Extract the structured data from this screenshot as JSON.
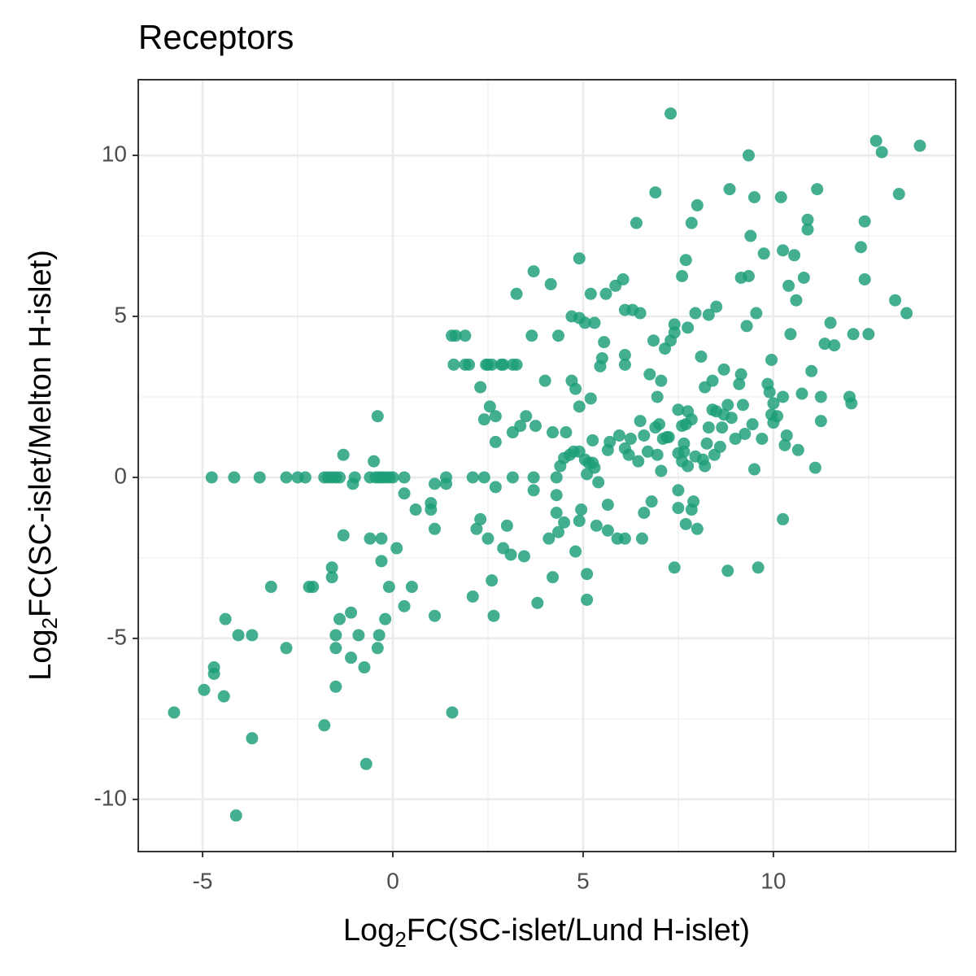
{
  "chart_data": {
    "type": "scatter",
    "title": "Receptors",
    "x_label": [
      "Log",
      "2",
      "FC(SC-islet/Lund H-islet)"
    ],
    "y_label": [
      "Log",
      "2",
      "FC(SC-islet/Melton H-islet)"
    ],
    "color": "#1b9e77",
    "opacity": 0.82,
    "grid": true,
    "minor_grid": true,
    "xlim": [
      -6.69,
      14.79
    ],
    "ylim": [
      -11.62,
      12.35
    ],
    "xticks": [
      -5,
      0,
      5,
      10
    ],
    "yticks": [
      -10,
      -5,
      0,
      5,
      10
    ],
    "x": [
      -5.75,
      -4.96,
      -4.7,
      -4.7,
      -4.44,
      -4.4,
      -4.76,
      -4.17,
      -4.12,
      -4.06,
      -3.7,
      -3.7,
      -3.5,
      -3.2,
      -2.8,
      -2.8,
      -2.5,
      -2.3,
      -2.2,
      -2.1,
      -1.8,
      -1.8,
      -1.7,
      -1.6,
      -1.5,
      -1.4,
      -1.6,
      -1.6,
      -1.5,
      -1.5,
      -1.5,
      -1.4,
      -1.3,
      -1.3,
      -1.1,
      -1.1,
      -1.05,
      -1.0,
      -0.9,
      -0.75,
      -0.7,
      -0.6,
      -0.6,
      -0.45,
      -0.36,
      -0.28,
      -0.19,
      -0.09,
      0,
      -0.5,
      -0.4,
      -0.36,
      -0.4,
      -0.3,
      -0.3,
      -0.2,
      -0.1,
      0.1,
      0.3,
      0.3,
      0.3,
      0.5,
      0.6,
      1.0,
      1.0,
      1.1,
      1.1,
      1.1,
      1.4,
      1.4,
      1.55,
      1.65,
      1.9,
      1.6,
      1.9,
      2.0,
      1.56,
      2.1,
      2.1,
      2.2,
      2.3,
      2.3,
      2.4,
      2.4,
      2.45,
      2.5,
      2.6,
      2.5,
      2.55,
      2.6,
      2.65,
      2.7,
      2.7,
      2.7,
      2.85,
      2.9,
      3.15,
      3.25,
      2.9,
      3.0,
      3.1,
      3.15,
      3.15,
      3.25,
      3.35,
      3.45,
      3.5,
      3.65,
      3.7,
      3.7,
      3.7,
      3.75,
      3.8,
      4.0,
      4.1,
      4.15,
      4.2,
      4.2,
      4.3,
      4.3,
      4.3,
      4.35,
      4.35,
      4.4,
      4.5,
      4.5,
      4.55,
      4.65,
      4.7,
      4.7,
      4.75,
      4.8,
      4.8,
      4.9,
      4.9,
      4.9,
      4.9,
      4.9,
      4.95,
      5.05,
      5.05,
      5.1,
      5.1,
      5.1,
      5.15,
      5.2,
      5.2,
      5.25,
      5.25,
      5.3,
      5.3,
      5.35,
      5.4,
      5.45,
      5.5,
      5.55,
      5.6,
      5.65,
      5.65,
      5.65,
      5.7,
      5.85,
      5.9,
      5.95,
      6.05,
      6.1,
      6.1,
      6.1,
      6.1,
      6.1,
      6.2,
      6.25,
      6.3,
      6.4,
      6.45,
      6.5,
      6.5,
      6.55,
      6.6,
      6.6,
      6.7,
      6.75,
      6.8,
      6.85,
      6.9,
      6.9,
      6.95,
      6.95,
      7.0,
      7.05,
      7.05,
      7.1,
      7.15,
      7.2,
      7.25,
      7.3,
      7.3,
      7.4,
      7.4,
      7.4,
      7.5,
      7.5,
      7.5,
      7.5,
      7.6,
      7.6,
      7.7,
      7.6,
      7.65,
      7.65,
      7.7,
      7.7,
      7.75,
      7.75,
      7.75,
      7.85,
      7.85,
      7.85,
      7.9,
      7.95,
      7.95,
      8.0,
      8.0,
      8.1,
      8.15,
      8.2,
      8.2,
      8.25,
      8.3,
      8.3,
      8.4,
      8.4,
      8.45,
      8.5,
      8.5,
      8.6,
      8.65,
      8.7,
      8.7,
      8.8,
      8.8,
      8.85,
      8.9,
      9.0,
      9.1,
      9.15,
      9.15,
      9.2,
      9.25,
      9.3,
      9.35,
      9.35,
      9.4,
      9.45,
      9.5,
      9.5,
      9.55,
      9.6,
      9.7,
      9.75,
      9.85,
      9.9,
      9.95,
      9.95,
      10.0,
      10.0,
      10.1,
      10.2,
      10.25,
      10.25,
      10.25,
      10.3,
      10.35,
      10.4,
      10.45,
      10.55,
      10.6,
      10.65,
      10.75,
      10.8,
      10.9,
      10.9,
      11.0,
      11.1,
      11.15,
      11.25,
      11.25,
      11.35,
      11.5,
      11.6,
      12.0,
      12.05,
      12.1,
      12.3,
      12.4,
      12.4,
      12.5,
      12.7,
      12.85,
      13.2,
      13.3,
      13.5,
      13.85
    ],
    "values": [
      -7.3,
      -6.6,
      -5.9,
      -6.1,
      -6.8,
      -4.4,
      0,
      0,
      -10.5,
      -4.9,
      -4.9,
      -8.1,
      0,
      -3.4,
      0,
      -5.3,
      0,
      0,
      -3.4,
      -3.4,
      -7.7,
      0,
      0,
      0,
      0,
      0,
      -2.8,
      -3.1,
      -5.3,
      -4.9,
      -6.5,
      -4.4,
      0.7,
      -1.8,
      -4.2,
      -5.6,
      -0.2,
      0,
      -4.9,
      -5.9,
      -8.9,
      -1.9,
      0,
      0,
      0,
      0,
      0,
      0,
      0,
      0.5,
      -5.3,
      -4.9,
      1.9,
      -1.9,
      -2.6,
      -4.4,
      -3.4,
      -2.2,
      0,
      -0.5,
      -4.0,
      -3.4,
      -1.0,
      -0.8,
      -1.0,
      -0.2,
      -4.3,
      -1.6,
      0,
      -0.2,
      4.4,
      4.4,
      4.4,
      3.5,
      3.5,
      3.5,
      -7.3,
      -3.7,
      0,
      -1.6,
      2.8,
      -1.3,
      1.8,
      0,
      3.5,
      3.5,
      3.5,
      -1.9,
      2.2,
      -3.2,
      -4.3,
      1.1,
      1.9,
      -0.3,
      3.5,
      3.5,
      3.5,
      3.5,
      -2.2,
      -1.5,
      -2.4,
      0,
      1.4,
      5.7,
      1.6,
      -2.45,
      1.9,
      4.4,
      6.4,
      0,
      -0.4,
      1.6,
      -3.9,
      3.0,
      -1.9,
      6.0,
      -3.1,
      1.4,
      0,
      -0.55,
      -1.1,
      4.4,
      -1.7,
      0.35,
      0.6,
      -1.4,
      1.4,
      0.7,
      3.0,
      5.0,
      0.8,
      2.75,
      -2.3,
      4.95,
      2.2,
      6.8,
      0.8,
      -1.35,
      -1.0,
      4.8,
      0.55,
      0.1,
      -3.0,
      -3.8,
      0.45,
      2.45,
      5.7,
      0.45,
      1.15,
      4.8,
      0.3,
      -1.5,
      -0.15,
      3.45,
      3.7,
      4.2,
      5.7,
      -0.85,
      -1.65,
      0.85,
      1.1,
      5.95,
      -1.9,
      1.3,
      6.15,
      -1.9,
      5.2,
      3.8,
      3.5,
      0.9,
      0.7,
      1.2,
      5.2,
      7.9,
      0.5,
      5.1,
      1.75,
      -1.9,
      -1.1,
      1.3,
      0.8,
      3.2,
      -0.75,
      4.25,
      8.85,
      1.55,
      0.7,
      2.5,
      1.65,
      3.0,
      0.2,
      1.2,
      4.0,
      1.25,
      1.25,
      11.3,
      4.25,
      4.5,
      4.75,
      -2.8,
      -0.4,
      -0.95,
      2.1,
      0.75,
      1.6,
      6.25,
      6.75,
      0.5,
      0.8,
      1.05,
      -1.45,
      1.65,
      4.65,
      2.05,
      0.35,
      7.9,
      1.8,
      -1.0,
      -0.75,
      5.1,
      0.65,
      8.45,
      -1.6,
      3.75,
      0.55,
      2.8,
      0.35,
      1.05,
      1.55,
      5.05,
      3.0,
      2.1,
      0.7,
      5.3,
      2.05,
      0.95,
      1.55,
      3.35,
      1.95,
      -2.9,
      2.25,
      8.95,
      1.85,
      1.2,
      2.9,
      6.2,
      3.2,
      2.25,
      1.35,
      4.7,
      10.0,
      6.25,
      7.5,
      1.65,
      0.25,
      8.7,
      5.1,
      -2.8,
      1.2,
      6.95,
      2.9,
      2.65,
      1.95,
      3.65,
      2.3,
      1.7,
      1.9,
      8.7,
      7.05,
      2.5,
      -1.3,
      1.0,
      1.3,
      5.95,
      4.45,
      6.9,
      5.5,
      0.85,
      2.6,
      6.2,
      7.7,
      8.0,
      3.3,
      0.3,
      8.95,
      2.5,
      1.75,
      4.15,
      4.8,
      4.1,
      2.5,
      2.3,
      4.45,
      7.15,
      6.15,
      7.95,
      4.45,
      10.45,
      10.1,
      5.5,
      8.8,
      5.1,
      10.3
    ]
  }
}
